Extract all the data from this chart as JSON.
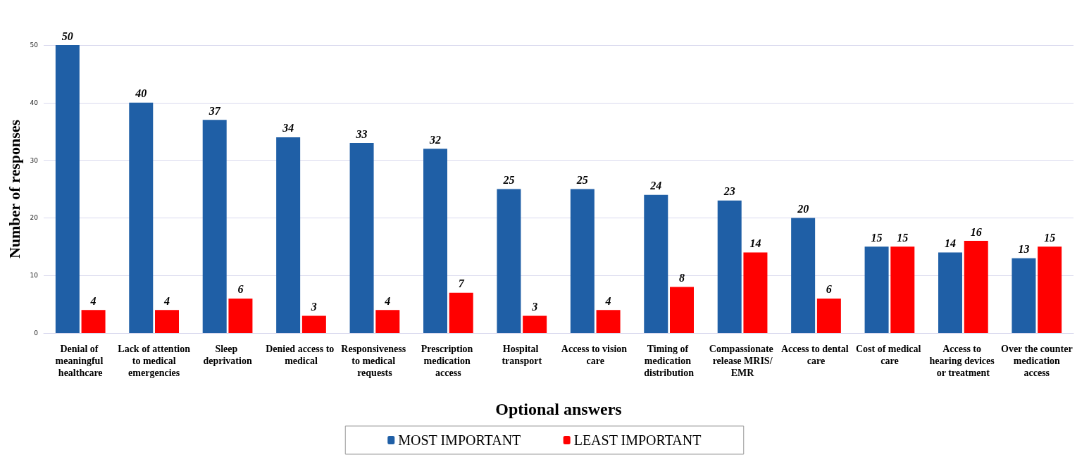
{
  "chart_data": {
    "type": "bar",
    "xlabel": "Optional answers",
    "ylabel": "Number of responses",
    "categories": [
      "Denial of meaningful healthcare",
      "Lack of attention to medical emergencies",
      "Sleep deprivation",
      "Denied access to medical",
      "Responsiveness to medical requests",
      "Prescription medication access",
      "Hospital transport",
      "Access to vision care",
      "Timing of medication distribution",
      "Compassionate release MRIS/EMR",
      "Access to dental care",
      "Cost of medical care",
      "Access to hearing devices or treatment",
      "Over the counter medication access"
    ],
    "series": [
      {
        "name": "MOST IMPORTANT",
        "color": "#1f5fa6",
        "values": [
          50,
          40,
          37,
          34,
          33,
          32,
          25,
          25,
          24,
          23,
          20,
          15,
          14,
          13
        ]
      },
      {
        "name": "LEAST IMPORTANT",
        "color": "#ff0000",
        "values": [
          4,
          4,
          6,
          3,
          4,
          7,
          3,
          4,
          8,
          14,
          6,
          15,
          16,
          15
        ]
      }
    ],
    "ylim": [
      0,
      50
    ],
    "yticks": [
      0,
      10,
      20,
      30,
      40,
      50
    ],
    "grid": "y",
    "legend": "bottom",
    "data_labels": true
  }
}
